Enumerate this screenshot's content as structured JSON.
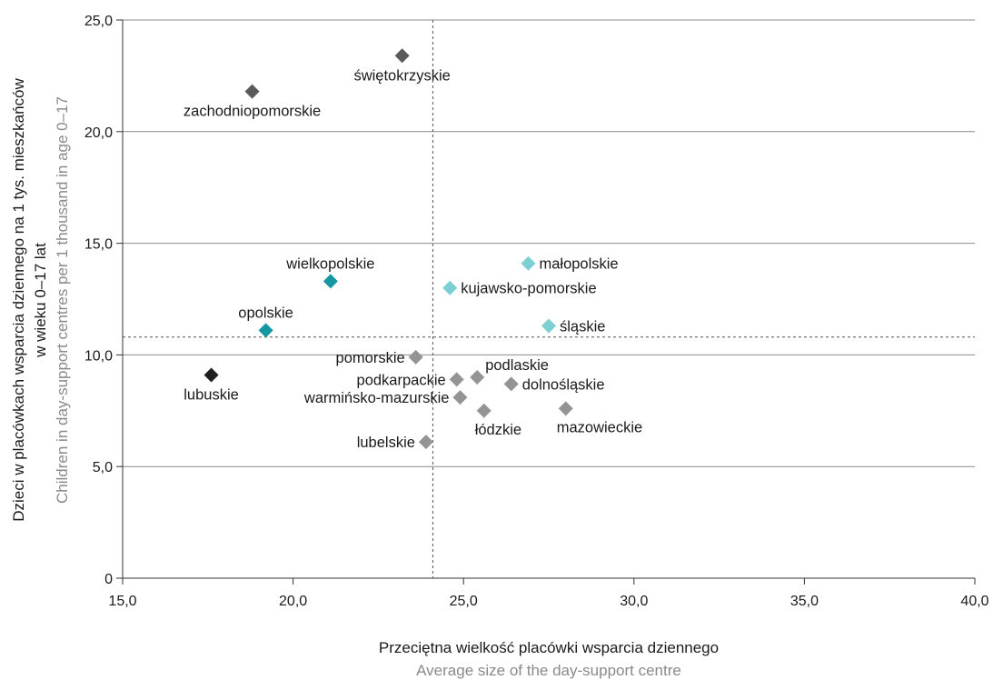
{
  "chart_data": {
    "type": "scatter",
    "title": "",
    "xlabel": "Przeciętna wielkość placówki wsparcia dziennego",
    "xlabel_en": "Average size of the day-support centre",
    "ylabel_line1": "Dzieci w placówkach wsparcia dziennego na 1 tys. mieszkańców",
    "ylabel_line2": "w wieku 0–17 lat",
    "ylabel_en": "Children in day-support centres per 1 thousand in age 0–17",
    "xlim": [
      15,
      40
    ],
    "ylim": [
      0,
      25
    ],
    "x_ticks": [
      15,
      20,
      25,
      30,
      35,
      40
    ],
    "y_ticks": [
      0,
      5,
      10,
      15,
      20,
      25
    ],
    "x_tick_labels": [
      "15,0",
      "20,0",
      "25,0",
      "30,0",
      "35,0",
      "40,0"
    ],
    "y_tick_labels": [
      "0",
      "5,0",
      "10,0",
      "15,0",
      "20,0",
      "25,0"
    ],
    "grid": "horizontal",
    "reference_lines": {
      "x": 24.1,
      "y": 10.8
    },
    "colors": {
      "dark_gray": "#5a5a5a",
      "teal": "#1497a0",
      "light_teal": "#7ecfd3",
      "black": "#1f1f1f",
      "gray": "#949494"
    },
    "points": [
      {
        "label": "świętokrzyskie",
        "x": 23.2,
        "y": 23.4,
        "color": "#5a5a5a",
        "label_pos": "below"
      },
      {
        "label": "zachodniopomorskie",
        "x": 18.8,
        "y": 21.8,
        "color": "#5a5a5a",
        "label_pos": "below"
      },
      {
        "label": "wielkopolskie",
        "x": 21.1,
        "y": 13.3,
        "color": "#1497a0",
        "label_pos": "above"
      },
      {
        "label": "opolskie",
        "x": 19.2,
        "y": 11.1,
        "color": "#1497a0",
        "label_pos": "above"
      },
      {
        "label": "lubuskie",
        "x": 17.6,
        "y": 9.1,
        "color": "#1f1f1f",
        "label_pos": "below"
      },
      {
        "label": "małopolskie",
        "x": 26.9,
        "y": 14.1,
        "color": "#7ecfd3",
        "label_pos": "right"
      },
      {
        "label": "kujawsko-pomorskie",
        "x": 24.6,
        "y": 13.0,
        "color": "#7ecfd3",
        "label_pos": "right"
      },
      {
        "label": "śląskie",
        "x": 27.5,
        "y": 11.3,
        "color": "#7ecfd3",
        "label_pos": "right"
      },
      {
        "label": "pomorskie",
        "x": 23.6,
        "y": 9.9,
        "color": "#949494",
        "label_pos": "left"
      },
      {
        "label": "podkarpackie",
        "x": 24.8,
        "y": 8.9,
        "color": "#949494",
        "label_pos": "left"
      },
      {
        "label": "podlaskie",
        "x": 25.4,
        "y": 9.0,
        "color": "#949494",
        "label_pos": "aboveright"
      },
      {
        "label": "dolnośląskie",
        "x": 26.4,
        "y": 8.7,
        "color": "#949494",
        "label_pos": "right"
      },
      {
        "label": "warmińsko-mazurskie",
        "x": 24.9,
        "y": 8.1,
        "color": "#949494",
        "label_pos": "left"
      },
      {
        "label": "łódzkie",
        "x": 25.6,
        "y": 7.5,
        "color": "#949494",
        "label_pos": "belowright"
      },
      {
        "label": "mazowieckie",
        "x": 28.0,
        "y": 7.6,
        "color": "#949494",
        "label_pos": "belowright"
      },
      {
        "label": "lubelskie",
        "x": 23.9,
        "y": 6.1,
        "color": "#949494",
        "label_pos": "left"
      }
    ]
  }
}
